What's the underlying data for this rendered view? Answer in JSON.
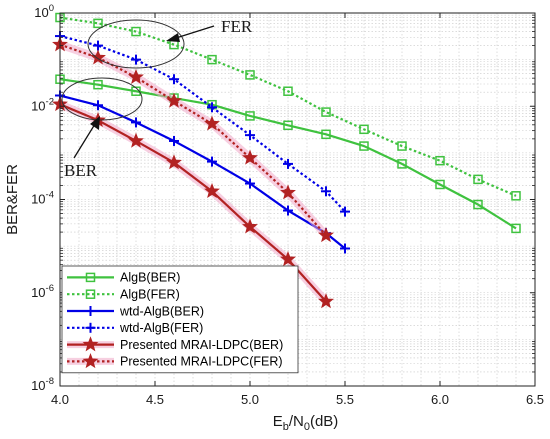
{
  "chart_data": {
    "type": "line",
    "xlabel": "E_b/N_0(dB)",
    "ylabel": "BER&FER",
    "xlim": [
      4.0,
      6.5
    ],
    "ylim": [
      1e-08,
      1
    ],
    "yscale": "log",
    "grid": true,
    "legend_position": "bottom-left",
    "x_ticks": [
      "4.0",
      "4.5",
      "5.0",
      "5.5",
      "6.0",
      "6.5"
    ],
    "y_ticks": [
      {
        "base": "10",
        "exp": "0"
      },
      {
        "base": "10",
        "exp": "-2"
      },
      {
        "base": "10",
        "exp": "-4"
      },
      {
        "base": "10",
        "exp": "-6"
      },
      {
        "base": "10",
        "exp": "-8"
      }
    ],
    "annotations": [
      {
        "text": "FER",
        "target": "FER curves"
      },
      {
        "text": "BER",
        "target": "BER curves"
      }
    ],
    "series": [
      {
        "name": "AlgB(BER)",
        "color": "#3fc23f",
        "line": "solid",
        "marker": "square",
        "x": [
          4.0,
          4.2,
          4.4,
          4.6,
          4.8,
          5.0,
          5.2,
          5.4,
          5.6,
          5.8,
          6.0,
          6.2,
          6.4
        ],
        "y": [
          0.038,
          0.029,
          0.021,
          0.015,
          0.0108,
          0.0062,
          0.0039,
          0.0025,
          0.0014,
          0.00058,
          0.00021,
          7.8e-05,
          2.4e-05
        ]
      },
      {
        "name": "AlgB(FER)",
        "color": "#3fc23f",
        "line": "dotted",
        "marker": "square",
        "x": [
          4.0,
          4.2,
          4.4,
          4.6,
          4.8,
          5.0,
          5.2,
          5.4,
          5.6,
          5.8,
          6.0,
          6.2,
          6.4
        ],
        "y": [
          0.8,
          0.6,
          0.4,
          0.21,
          0.1,
          0.047,
          0.021,
          0.0075,
          0.0032,
          0.0014,
          0.00068,
          0.00027,
          0.00012
        ]
      },
      {
        "name": "wtd-AlgB(BER)",
        "color": "#0000e6",
        "line": "solid",
        "marker": "plus",
        "x": [
          4.0,
          4.2,
          4.4,
          4.6,
          4.8,
          5.0,
          5.2,
          5.4,
          5.5
        ],
        "y": [
          0.017,
          0.0105,
          0.0045,
          0.0018,
          0.00065,
          0.00022,
          5.8e-05,
          1.9e-05,
          8.9e-06
        ]
      },
      {
        "name": "wtd-AlgB(FER)",
        "color": "#0000e6",
        "line": "dotted",
        "marker": "plus",
        "x": [
          4.0,
          4.2,
          4.4,
          4.6,
          4.8,
          5.0,
          5.2,
          5.4,
          5.5
        ],
        "y": [
          0.32,
          0.2,
          0.1,
          0.038,
          0.0095,
          0.0024,
          0.00058,
          0.00015,
          5.5e-05
        ]
      },
      {
        "name": "Presented MRAI-LDPC(BER)",
        "color": "#b22222",
        "line": "solid",
        "marker": "star",
        "x": [
          4.0,
          4.2,
          4.4,
          4.6,
          4.8,
          5.0,
          5.2,
          5.4
        ],
        "y": [
          0.011,
          0.005,
          0.0018,
          0.00062,
          0.00015,
          2.6e-05,
          5.2e-06,
          6.5e-07
        ]
      },
      {
        "name": "Presented MRAI-LDPC(FER)",
        "color": "#b22222",
        "line": "dotted",
        "marker": "star",
        "x": [
          4.0,
          4.2,
          4.4,
          4.6,
          4.8,
          5.0,
          5.2,
          5.4
        ],
        "y": [
          0.21,
          0.11,
          0.042,
          0.013,
          0.0042,
          0.00078,
          0.00014,
          1.7e-05
        ]
      }
    ]
  }
}
